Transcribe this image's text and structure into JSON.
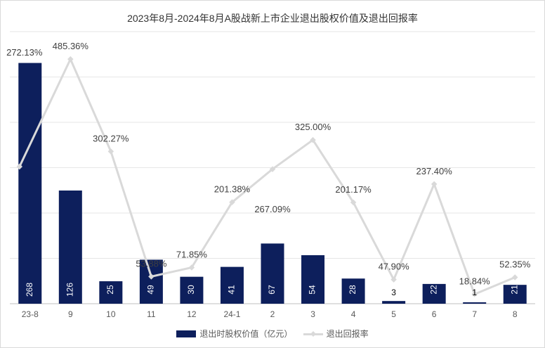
{
  "chart_data": {
    "type": "bar",
    "title": "2023年8月-2024年8月A股战新上市企业退出股权价值及退出回报率",
    "categories": [
      "23-8",
      "9",
      "10",
      "11",
      "12",
      "24-1",
      "2",
      "3",
      "4",
      "5",
      "6",
      "7",
      "8"
    ],
    "series": [
      {
        "name": "退出时股权价值（亿元）",
        "type": "bar",
        "color": "#0d1f5c",
        "values": [
          268,
          126,
          25,
          49,
          30,
          41,
          67,
          54,
          28,
          3,
          22,
          1,
          21
        ],
        "labels": [
          "268",
          "126",
          "25",
          "49",
          "30",
          "41",
          "67",
          "54",
          "28",
          "3",
          "22",
          "1",
          "21"
        ]
      },
      {
        "name": "退出回报率",
        "type": "line",
        "color": "#d9d9d9",
        "values": [
          272.13,
          485.36,
          302.27,
          53.88,
          71.85,
          201.38,
          267.09,
          325.0,
          201.17,
          47.9,
          237.4,
          18.84,
          52.35
        ],
        "labels": [
          "272.13%",
          "485.36%",
          "302.27%",
          "53.88%",
          "71.85%",
          "201.38%",
          "267.09%",
          "325.00%",
          "201.17%",
          "47.90%",
          "237.40%",
          "18.84%",
          "52.35%"
        ]
      }
    ],
    "ylim_bar": [
      0,
      270
    ],
    "ylim_line": [
      0,
      540
    ],
    "grid": true,
    "legend_position": "bottom"
  }
}
